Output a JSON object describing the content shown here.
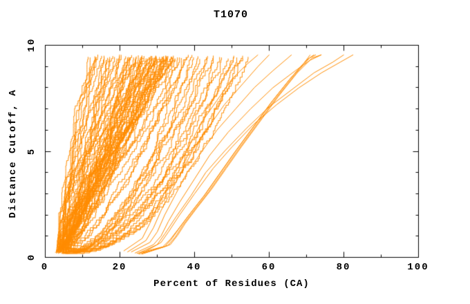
{
  "background": "#ffffff",
  "text_color": "#000000",
  "chart_data": {
    "type": "line",
    "title": "T1070",
    "xlabel": "Percent of Residues (CA)",
    "ylabel": "Distance Cutoff, A",
    "xlim": [
      0,
      100
    ],
    "ylim": [
      0,
      10
    ],
    "x_major_ticks": [
      0,
      20,
      40,
      60,
      80,
      100
    ],
    "x_minor_ticks": [
      10,
      30,
      50,
      70,
      90
    ],
    "y_major_ticks": [
      0,
      5,
      10
    ],
    "y_minor_ticks": [
      1,
      2,
      3,
      4,
      6,
      7,
      8,
      9
    ],
    "grid": false,
    "legend": "none",
    "line_color": "#ff8c00",
    "frame_color": "#000000",
    "curve_y_range": [
      0.2,
      9.55
    ],
    "bundle_curve_format": "[x_percent_at_bottom_cutoff, x_percent_at_top_cutoff, shape_exponent]",
    "bundle_curves": [
      [
        3.0,
        11,
        1.3
      ],
      [
        3.2,
        12,
        1.1
      ],
      [
        2.5,
        12.5,
        1.2
      ],
      [
        3.5,
        13,
        1.4
      ],
      [
        2.8,
        13.5,
        1.0
      ],
      [
        4.0,
        14,
        1.2
      ],
      [
        3.3,
        15,
        1.5
      ],
      [
        4.2,
        15.5,
        1.1
      ],
      [
        3.6,
        16,
        1.3
      ],
      [
        4.5,
        17,
        1.2
      ],
      [
        3.1,
        17.5,
        1.4
      ],
      [
        4.8,
        18,
        1.0
      ],
      [
        3.9,
        18.5,
        1.3
      ],
      [
        4.4,
        19,
        1.1
      ],
      [
        3.4,
        19.5,
        1.2
      ],
      [
        3.5,
        20,
        0.9
      ],
      [
        4.0,
        21,
        1.2
      ],
      [
        4.6,
        22,
        0.8
      ],
      [
        3.2,
        22.5,
        1.4
      ],
      [
        5.0,
        23,
        1.0
      ],
      [
        3.8,
        24,
        0.7
      ],
      [
        4.3,
        24.5,
        1.3
      ],
      [
        5.2,
        25,
        0.9
      ],
      [
        3.6,
        26,
        1.1
      ],
      [
        4.8,
        26.5,
        0.8
      ],
      [
        4.1,
        27,
        1.2
      ],
      [
        5.5,
        27.5,
        1.0
      ],
      [
        3.9,
        28,
        0.85
      ],
      [
        4.5,
        28.5,
        1.3
      ],
      [
        5.1,
        29,
        0.75
      ],
      [
        3.7,
        29.5,
        1.1
      ],
      [
        4.9,
        30,
        0.9
      ],
      [
        4.2,
        30.5,
        1.2
      ],
      [
        5.6,
        31,
        0.8
      ],
      [
        4.0,
        31.5,
        1.0
      ],
      [
        5.3,
        32,
        1.15
      ],
      [
        4.6,
        32.5,
        0.85
      ],
      [
        3.8,
        33,
        1.05
      ],
      [
        5.0,
        33.5,
        0.9
      ],
      [
        4.4,
        34,
        1.2
      ],
      [
        5.7,
        34.5,
        0.8
      ],
      [
        4.1,
        35,
        1.0
      ],
      [
        4.7,
        23.5,
        1.1
      ],
      [
        5.4,
        25.5,
        0.95
      ],
      [
        4.35,
        27.8,
        1.05
      ],
      [
        3.95,
        30.8,
        0.95
      ],
      [
        5.15,
        33.2,
        1.1
      ],
      [
        4.55,
        21.5,
        1.25
      ],
      [
        4.05,
        26.2,
        0.9
      ],
      [
        4.15,
        20.5,
        1.05
      ],
      [
        4.85,
        22.2,
        0.95
      ],
      [
        5.25,
        24.2,
        1.1
      ],
      [
        3.65,
        24.8,
        0.8
      ],
      [
        4.0,
        25.3,
        1.15
      ],
      [
        5.05,
        26.8,
        0.9
      ],
      [
        4.65,
        28.2,
        1.0
      ],
      [
        3.85,
        28.8,
        1.2
      ],
      [
        5.45,
        29.3,
        0.85
      ],
      [
        4.25,
        29.8,
        1.05
      ],
      [
        4.95,
        31.2,
        0.95
      ],
      [
        5.6,
        31.8,
        1.1
      ],
      [
        4.1,
        32.2,
        0.9
      ],
      [
        4.7,
        32.8,
        1.0
      ],
      [
        5.2,
        33.8,
        0.85
      ],
      [
        3.75,
        34.2,
        1.1
      ],
      [
        4.5,
        34.8,
        0.95
      ],
      [
        5.0,
        35.5,
        0.9
      ],
      [
        4.3,
        36.5,
        0.8
      ],
      [
        5.35,
        37.5,
        0.7
      ],
      [
        5.0,
        36,
        0.6
      ],
      [
        6.0,
        37,
        0.5
      ],
      [
        4.5,
        38,
        0.7
      ],
      [
        5.5,
        39,
        0.45
      ],
      [
        6.5,
        40,
        0.6
      ],
      [
        5.0,
        41,
        0.5
      ],
      [
        7.0,
        42,
        0.65
      ],
      [
        5.8,
        43,
        0.4
      ],
      [
        6.2,
        44,
        0.55
      ],
      [
        4.8,
        45,
        0.6
      ],
      [
        7.5,
        46,
        0.45
      ],
      [
        6.0,
        47,
        0.5
      ],
      [
        5.2,
        48,
        0.6
      ],
      [
        6.8,
        49,
        0.4
      ],
      [
        7.2,
        50,
        0.55
      ],
      [
        5.6,
        50.5,
        0.5
      ],
      [
        6.4,
        51.5,
        0.45
      ],
      [
        7.8,
        52.5,
        0.5
      ],
      [
        6.1,
        53.5,
        0.55
      ],
      [
        5.4,
        55,
        0.45
      ]
    ],
    "outlier_curves": [
      [
        [
          26,
          0.2
        ],
        [
          31,
          0.7
        ],
        [
          33,
          1.2
        ],
        [
          36,
          2.0
        ],
        [
          40,
          3.0
        ],
        [
          45,
          4.2
        ],
        [
          50,
          5.2
        ],
        [
          56,
          6.3
        ],
        [
          62,
          7.2
        ],
        [
          68,
          8.0
        ],
        [
          74,
          8.7
        ],
        [
          79,
          9.2
        ],
        [
          82.5,
          9.55
        ]
      ],
      [
        [
          25,
          0.2
        ],
        [
          30,
          0.6
        ],
        [
          32,
          1.1
        ],
        [
          35,
          1.9
        ],
        [
          39,
          2.9
        ],
        [
          43,
          4.0
        ],
        [
          48,
          5.0
        ],
        [
          54,
          6.1
        ],
        [
          60,
          7.1
        ],
        [
          66,
          7.9
        ],
        [
          72,
          8.7
        ],
        [
          77,
          9.2
        ],
        [
          80,
          9.55
        ]
      ],
      [
        [
          24,
          0.2
        ],
        [
          29,
          0.6
        ],
        [
          31,
          1.0
        ],
        [
          33,
          1.7
        ],
        [
          36,
          2.6
        ],
        [
          40,
          3.7
        ],
        [
          44,
          4.8
        ],
        [
          49,
          5.9
        ],
        [
          55,
          7.0
        ],
        [
          61,
          8.0
        ],
        [
          67,
          8.8
        ],
        [
          71,
          9.3
        ],
        [
          74,
          9.55
        ]
      ],
      [
        [
          23,
          0.25
        ],
        [
          28,
          0.7
        ],
        [
          30,
          1.2
        ],
        [
          32,
          2.0
        ],
        [
          35,
          3.0
        ],
        [
          38,
          4.0
        ],
        [
          42,
          5.0
        ],
        [
          46,
          6.0
        ],
        [
          51,
          7.0
        ],
        [
          56,
          8.0
        ],
        [
          61,
          8.8
        ],
        [
          66,
          9.55
        ]
      ],
      [
        [
          22,
          0.25
        ],
        [
          27,
          0.8
        ],
        [
          29,
          1.4
        ],
        [
          31,
          2.2
        ],
        [
          34,
          3.2
        ],
        [
          37,
          4.2
        ],
        [
          40,
          5.2
        ],
        [
          44,
          6.2
        ],
        [
          48,
          7.2
        ],
        [
          53,
          8.2
        ],
        [
          57,
          9.0
        ],
        [
          60,
          9.55
        ]
      ],
      [
        [
          21,
          0.3
        ],
        [
          26,
          0.9
        ],
        [
          28,
          1.6
        ],
        [
          30,
          2.4
        ],
        [
          33,
          3.4
        ],
        [
          36,
          4.4
        ],
        [
          39,
          5.4
        ],
        [
          42,
          6.4
        ],
        [
          46,
          7.4
        ],
        [
          50,
          8.4
        ],
        [
          54,
          9.1
        ],
        [
          57,
          9.55
        ]
      ],
      [
        [
          25,
          0.15
        ],
        [
          32,
          0.5
        ],
        [
          34,
          0.9
        ],
        [
          36,
          1.4
        ],
        [
          39,
          2.1
        ],
        [
          43,
          3.0
        ],
        [
          47,
          4.0
        ],
        [
          51,
          5.0
        ],
        [
          56,
          6.2
        ],
        [
          61,
          7.4
        ],
        [
          66,
          8.5
        ],
        [
          70,
          9.3
        ],
        [
          72,
          9.55
        ]
      ],
      [
        [
          25.8,
          0.15
        ],
        [
          32.8,
          0.55
        ],
        [
          34.8,
          0.95
        ],
        [
          36.8,
          1.5
        ],
        [
          39.8,
          2.2
        ],
        [
          43.8,
          3.1
        ],
        [
          47.8,
          4.1
        ],
        [
          51.8,
          5.1
        ],
        [
          56.8,
          6.3
        ],
        [
          61.8,
          7.5
        ],
        [
          66.8,
          8.6
        ],
        [
          70.8,
          9.4
        ],
        [
          72.5,
          9.55
        ]
      ],
      [
        [
          26.5,
          0.2
        ],
        [
          33.5,
          0.6
        ],
        [
          35.5,
          1.05
        ],
        [
          37.5,
          1.6
        ],
        [
          40.5,
          2.3
        ],
        [
          44.5,
          3.2
        ],
        [
          48.5,
          4.2
        ],
        [
          52.5,
          5.2
        ],
        [
          57.5,
          6.4
        ],
        [
          62.5,
          7.6
        ],
        [
          67.5,
          8.7
        ],
        [
          71.5,
          9.4
        ],
        [
          74,
          9.55
        ]
      ],
      [
        [
          24.5,
          0.18
        ],
        [
          31.5,
          0.5
        ],
        [
          33.5,
          0.85
        ],
        [
          35.5,
          1.3
        ],
        [
          38.5,
          2.0
        ],
        [
          42.5,
          2.9
        ],
        [
          46.5,
          3.9
        ],
        [
          50.5,
          4.9
        ],
        [
          55.5,
          6.1
        ],
        [
          60.5,
          7.3
        ],
        [
          65.5,
          8.4
        ],
        [
          69.5,
          9.2
        ],
        [
          71,
          9.55
        ]
      ]
    ]
  }
}
